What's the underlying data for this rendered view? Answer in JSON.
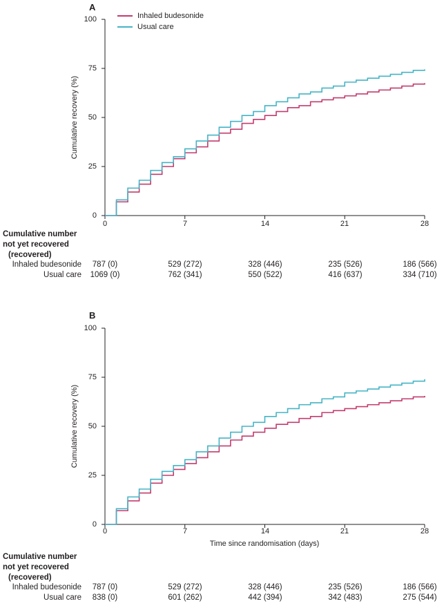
{
  "chart_data": [
    {
      "type": "line",
      "panel_label": "A",
      "step": true,
      "title": "",
      "xlabel": "",
      "ylabel": "Cumulative recovery (%)",
      "xlim": [
        0,
        28
      ],
      "ylim": [
        0,
        100
      ],
      "xticks": [
        0,
        7,
        14,
        21,
        28
      ],
      "yticks": [
        0,
        25,
        50,
        75,
        100
      ],
      "xtick_labels": [
        "0",
        "7",
        "14",
        "21",
        "28"
      ],
      "ytick_labels": [
        "100",
        "75",
        "50",
        "25",
        "0"
      ],
      "grid": false,
      "legend_position": "top-left-inside",
      "x": [
        0,
        1,
        2,
        3,
        4,
        5,
        6,
        7,
        8,
        9,
        10,
        11,
        12,
        13,
        14,
        15,
        16,
        17,
        18,
        19,
        20,
        21,
        22,
        23,
        24,
        25,
        26,
        27,
        28
      ],
      "series": [
        {
          "name": "Inhaled budesonide",
          "color": "#c23b6d",
          "values": [
            0,
            7,
            12,
            16,
            21,
            25,
            29,
            32,
            35,
            38,
            42,
            44,
            47,
            49,
            51,
            53,
            55,
            56,
            58,
            59,
            60,
            61,
            62,
            63,
            64,
            65,
            66,
            67,
            67.5
          ]
        },
        {
          "name": "Usual care",
          "color": "#45b4c5",
          "values": [
            0,
            8,
            14,
            18,
            23,
            27,
            30,
            34,
            38,
            41,
            45,
            48,
            51,
            53,
            56,
            58,
            60,
            62,
            63,
            65,
            66,
            68,
            69,
            70,
            71,
            72,
            73,
            74,
            74.5
          ]
        }
      ]
    },
    {
      "type": "line",
      "panel_label": "B",
      "step": true,
      "title": "",
      "xlabel": "Time since randomisation (days)",
      "ylabel": "Cumulative recovery (%)",
      "xlim": [
        0,
        28
      ],
      "ylim": [
        0,
        100
      ],
      "xticks": [
        0,
        7,
        14,
        21,
        28
      ],
      "yticks": [
        0,
        25,
        50,
        75,
        100
      ],
      "xtick_labels": [
        "0",
        "7",
        "14",
        "21",
        "28"
      ],
      "ytick_labels": [
        "100",
        "75",
        "50",
        "25",
        "0"
      ],
      "grid": false,
      "legend_position": "none",
      "x": [
        0,
        1,
        2,
        3,
        4,
        5,
        6,
        7,
        8,
        9,
        10,
        11,
        12,
        13,
        14,
        15,
        16,
        17,
        18,
        19,
        20,
        21,
        22,
        23,
        24,
        25,
        26,
        27,
        28
      ],
      "series": [
        {
          "name": "Inhaled budesonide",
          "color": "#c23b6d",
          "values": [
            0,
            7,
            12,
            16,
            21,
            25,
            28,
            31,
            34,
            37,
            40,
            43,
            45,
            47,
            49,
            51,
            52,
            54,
            55,
            57,
            58,
            59,
            60,
            61,
            62,
            63,
            64,
            65,
            65.5
          ]
        },
        {
          "name": "Usual care",
          "color": "#45b4c5",
          "values": [
            0,
            8,
            14,
            18,
            23,
            27,
            30,
            33,
            37,
            40,
            44,
            47,
            50,
            52,
            55,
            57,
            59,
            61,
            62,
            64,
            65,
            67,
            68,
            69,
            70,
            71,
            72,
            73,
            74
          ]
        }
      ]
    }
  ],
  "risk_tables": [
    {
      "header_lines": [
        "Cumulative number",
        "not yet recovered",
        "(recovered)"
      ],
      "rows": [
        {
          "label": "Inhaled budesonide",
          "values": [
            "787 (0)",
            "529 (272)",
            "328 (446)",
            "235 (526)",
            "186 (566)"
          ]
        },
        {
          "label": "Usual care",
          "values": [
            "1069 (0)",
            "762 (341)",
            "550 (522)",
            "416 (637)",
            "334 (710)"
          ]
        }
      ]
    },
    {
      "header_lines": [
        "Cumulative number",
        "not yet recovered",
        "(recovered)"
      ],
      "rows": [
        {
          "label": "Inhaled budesonide",
          "values": [
            "787 (0)",
            "529 (272)",
            "328 (446)",
            "235 (526)",
            "186 (566)"
          ]
        },
        {
          "label": "Usual care",
          "values": [
            "838 (0)",
            "601 (262)",
            "442 (394)",
            "342 (483)",
            "275 (544)"
          ]
        }
      ]
    }
  ]
}
